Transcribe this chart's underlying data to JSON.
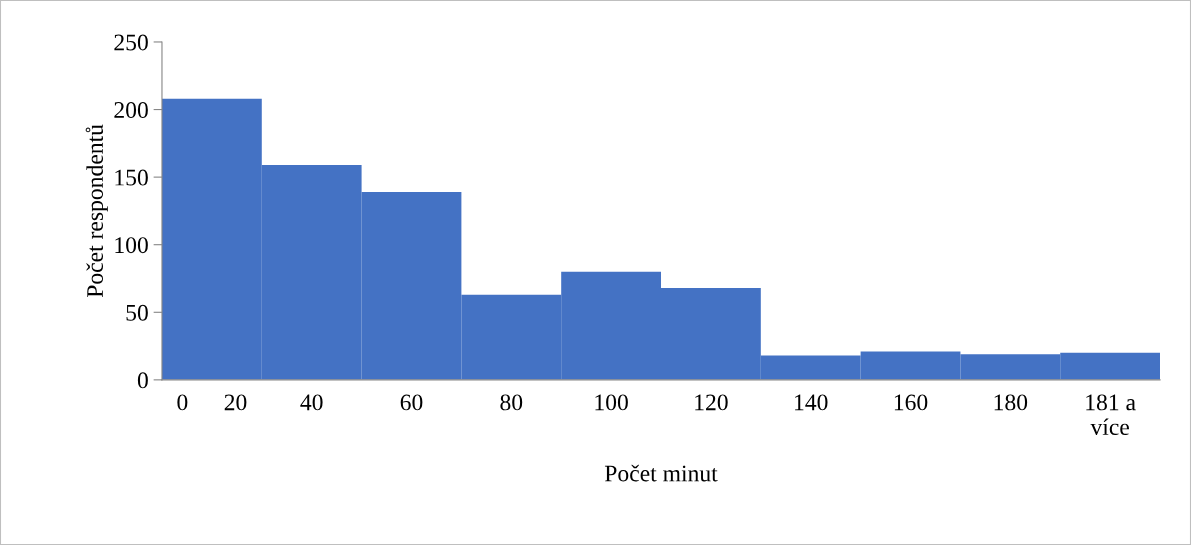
{
  "chart_data": {
    "type": "bar",
    "xlabel": "Počet minut",
    "ylabel": "Počet respondentů",
    "categories": [
      "0      20",
      "40",
      "60",
      "80",
      "100",
      "120",
      "140",
      "160",
      "180",
      "181 a\nvíce"
    ],
    "values": [
      208,
      159,
      139,
      63,
      80,
      68,
      18,
      21,
      19,
      20
    ],
    "color": "#4472c4",
    "ylim": [
      0,
      250
    ],
    "yticks": [
      0,
      50,
      100,
      150,
      200,
      250
    ],
    "grid": false,
    "legend": false
  }
}
